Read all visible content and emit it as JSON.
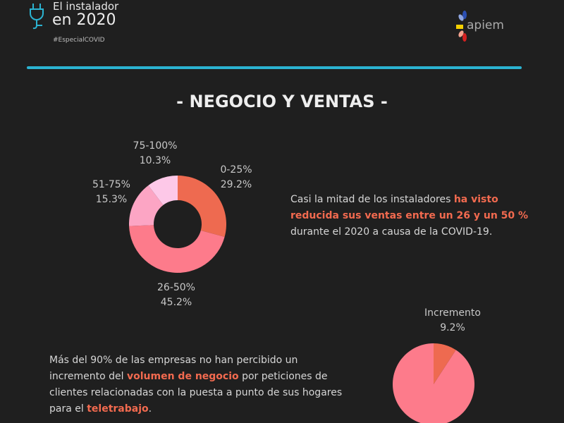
{
  "header": {
    "brand_line1": "El instalador",
    "brand_line2": "en 2020",
    "hashtag": "#EspecialCOVID",
    "logo_text": "apiem",
    "accent_color": "#2bb3d1"
  },
  "section_title": "- NEGOCIO Y VENTAS -",
  "paragraph1": {
    "before": "Casi la mitad de los instaladores ",
    "highlight": "ha visto reducida sus ventas entre un 26 y un 50 %",
    "after": " durante el 2020 a causa de la COVID-19."
  },
  "paragraph2": {
    "part1": "Más del 90% de las empresas no han percibido un incremento del ",
    "highlight1": "volumen de negocio",
    "part2": " por peticiones de clientes relacionadas con la puesta a punto de sus hogares para el ",
    "highlight2": "teletrabajo",
    "part3": "."
  },
  "chart_data": [
    {
      "type": "pie",
      "variant": "donut",
      "categories": [
        "0-25%",
        "26-50%",
        "51-75%",
        "75-100%"
      ],
      "values": [
        29.2,
        45.2,
        15.3,
        10.3
      ],
      "value_labels": [
        "29.2%",
        "45.2%",
        "15.3%",
        "10.3%"
      ],
      "colors": [
        "#ee6a50",
        "#fd7b8b",
        "#fca5c4",
        "#fdc8e8"
      ]
    },
    {
      "type": "pie",
      "categories": [
        "Incremento",
        ""
      ],
      "values": [
        9.2,
        90.8
      ],
      "value_labels": [
        "9.2%",
        ""
      ],
      "colors": [
        "#ee6a50",
        "#fd7b8b"
      ]
    }
  ]
}
